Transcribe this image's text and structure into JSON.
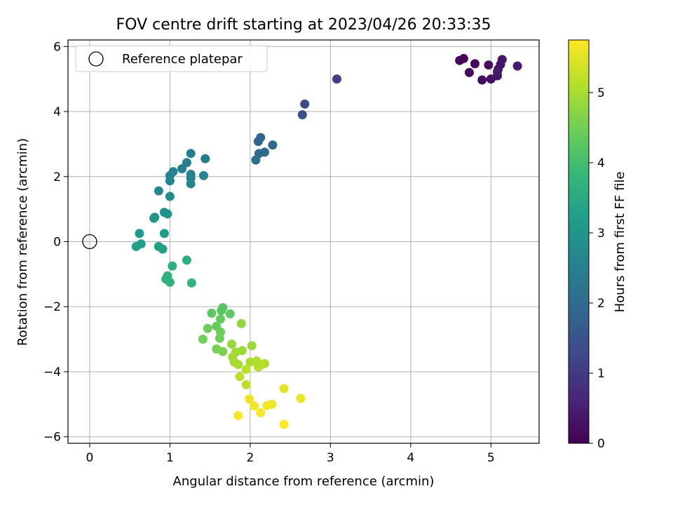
{
  "chart_data": {
    "type": "scatter",
    "title": "FOV centre drift starting at 2023/04/26 20:33:35",
    "xlabel": "Angular distance from reference (arcmin)",
    "ylabel": "Rotation from reference (arcmin)",
    "xlim": [
      -0.27,
      5.6
    ],
    "ylim": [
      -6.2,
      6.2
    ],
    "xticks": [
      "0",
      "1",
      "2",
      "3",
      "4",
      "5"
    ],
    "yticks": [
      "−6",
      "−4",
      "−2",
      "0",
      "2",
      "4",
      "6"
    ],
    "grid": true,
    "legend": {
      "position": "top-left",
      "label": "Reference platepar"
    },
    "reference_point": {
      "x": 0,
      "y": 0
    },
    "colorbar": {
      "label": "Hours from first FF file",
      "range": [
        0,
        5.75
      ],
      "ticks": [
        "0",
        "1",
        "2",
        "3",
        "4",
        "5"
      ],
      "colormap": "viridis",
      "colors": [
        "#440154",
        "#482878",
        "#3e4989",
        "#31688e",
        "#26828e",
        "#1f9e89",
        "#35b779",
        "#6ece58",
        "#b5de2b",
        "#fde725"
      ]
    },
    "series": [
      {
        "points": [
          {
            "x": 4.61,
            "y": 5.57,
            "h": 0.05
          },
          {
            "x": 4.66,
            "y": 5.63,
            "h": 0.08
          },
          {
            "x": 4.8,
            "y": 5.47,
            "h": 0.12
          },
          {
            "x": 4.73,
            "y": 5.2,
            "h": 0.15
          },
          {
            "x": 4.89,
            "y": 4.97,
            "h": 0.18
          },
          {
            "x": 4.97,
            "y": 5.43,
            "h": 0.22
          },
          {
            "x": 5.0,
            "y": 5.0,
            "h": 0.25
          },
          {
            "x": 5.08,
            "y": 5.1,
            "h": 0.28
          },
          {
            "x": 5.09,
            "y": 5.3,
            "h": 0.3
          },
          {
            "x": 5.12,
            "y": 5.45,
            "h": 0.33
          },
          {
            "x": 5.14,
            "y": 5.6,
            "h": 0.36
          },
          {
            "x": 5.33,
            "y": 5.4,
            "h": 0.4
          },
          {
            "x": 5.08,
            "y": 5.22,
            "h": 0.42
          },
          {
            "x": 3.08,
            "y": 5.0,
            "h": 1.1
          },
          {
            "x": 2.68,
            "y": 4.23,
            "h": 1.3
          },
          {
            "x": 2.65,
            "y": 3.9,
            "h": 1.4
          },
          {
            "x": 2.13,
            "y": 3.2,
            "h": 1.8
          },
          {
            "x": 2.1,
            "y": 3.08,
            "h": 1.85
          },
          {
            "x": 2.28,
            "y": 2.97,
            "h": 1.9
          },
          {
            "x": 2.18,
            "y": 2.75,
            "h": 1.95
          },
          {
            "x": 2.11,
            "y": 2.71,
            "h": 2.0
          },
          {
            "x": 2.07,
            "y": 2.51,
            "h": 2.05
          },
          {
            "x": 1.44,
            "y": 2.55,
            "h": 2.4
          },
          {
            "x": 1.26,
            "y": 2.71,
            "h": 2.42
          },
          {
            "x": 1.21,
            "y": 2.43,
            "h": 2.45
          },
          {
            "x": 1.15,
            "y": 2.24,
            "h": 2.48
          },
          {
            "x": 1.04,
            "y": 2.15,
            "h": 2.5
          },
          {
            "x": 1.26,
            "y": 2.07,
            "h": 2.52
          },
          {
            "x": 1.0,
            "y": 2.03,
            "h": 2.55
          },
          {
            "x": 1.26,
            "y": 1.95,
            "h": 2.57
          },
          {
            "x": 1.42,
            "y": 2.03,
            "h": 2.6
          },
          {
            "x": 1.0,
            "y": 1.87,
            "h": 2.62
          },
          {
            "x": 1.26,
            "y": 1.78,
            "h": 2.65
          },
          {
            "x": 0.86,
            "y": 1.56,
            "h": 2.7
          },
          {
            "x": 1.0,
            "y": 1.39,
            "h": 2.75
          },
          {
            "x": 0.93,
            "y": 0.9,
            "h": 2.9
          },
          {
            "x": 0.97,
            "y": 0.85,
            "h": 2.95
          },
          {
            "x": 0.81,
            "y": 0.75,
            "h": 3.0
          },
          {
            "x": 0.8,
            "y": 0.72,
            "h": 3.02
          },
          {
            "x": 0.62,
            "y": 0.25,
            "h": 3.1
          },
          {
            "x": 0.93,
            "y": 0.25,
            "h": 3.12
          },
          {
            "x": 0.64,
            "y": -0.07,
            "h": 3.2
          },
          {
            "x": 0.58,
            "y": -0.15,
            "h": 3.22
          },
          {
            "x": 0.86,
            "y": -0.15,
            "h": 3.25
          },
          {
            "x": 0.91,
            "y": -0.23,
            "h": 3.28
          },
          {
            "x": 1.21,
            "y": -0.57,
            "h": 3.6
          },
          {
            "x": 1.03,
            "y": -0.75,
            "h": 3.62
          },
          {
            "x": 0.97,
            "y": -1.05,
            "h": 3.65
          },
          {
            "x": 0.95,
            "y": -1.15,
            "h": 3.68
          },
          {
            "x": 1.0,
            "y": -1.25,
            "h": 3.7
          },
          {
            "x": 1.27,
            "y": -1.27,
            "h": 3.72
          },
          {
            "x": 1.66,
            "y": -2.03,
            "h": 4.2
          },
          {
            "x": 1.64,
            "y": -2.12,
            "h": 4.25
          },
          {
            "x": 1.52,
            "y": -2.2,
            "h": 4.28
          },
          {
            "x": 1.75,
            "y": -2.22,
            "h": 4.3
          },
          {
            "x": 1.63,
            "y": -2.38,
            "h": 4.35
          },
          {
            "x": 1.58,
            "y": -2.6,
            "h": 4.4
          },
          {
            "x": 1.47,
            "y": -2.67,
            "h": 4.42
          },
          {
            "x": 1.63,
            "y": -2.78,
            "h": 4.45
          },
          {
            "x": 1.62,
            "y": -2.97,
            "h": 4.48
          },
          {
            "x": 1.41,
            "y": -3.0,
            "h": 4.5
          },
          {
            "x": 1.58,
            "y": -3.3,
            "h": 4.55
          },
          {
            "x": 1.66,
            "y": -3.38,
            "h": 4.58
          },
          {
            "x": 1.89,
            "y": -2.52,
            "h": 4.8
          },
          {
            "x": 1.77,
            "y": -3.15,
            "h": 4.85
          },
          {
            "x": 2.02,
            "y": -3.2,
            "h": 4.88
          },
          {
            "x": 1.9,
            "y": -3.35,
            "h": 4.9
          },
          {
            "x": 1.82,
            "y": -3.4,
            "h": 4.92
          },
          {
            "x": 1.78,
            "y": -3.55,
            "h": 4.95
          },
          {
            "x": 1.8,
            "y": -3.7,
            "h": 4.97
          },
          {
            "x": 1.85,
            "y": -3.78,
            "h": 5.0
          },
          {
            "x": 2.0,
            "y": -3.7,
            "h": 5.02
          },
          {
            "x": 2.08,
            "y": -3.67,
            "h": 5.05
          },
          {
            "x": 2.1,
            "y": -3.85,
            "h": 5.07
          },
          {
            "x": 2.18,
            "y": -3.75,
            "h": 5.1
          },
          {
            "x": 2.13,
            "y": -3.8,
            "h": 5.12
          },
          {
            "x": 1.95,
            "y": -3.93,
            "h": 5.15
          },
          {
            "x": 1.87,
            "y": -4.15,
            "h": 5.18
          },
          {
            "x": 1.95,
            "y": -4.4,
            "h": 5.2
          },
          {
            "x": 2.42,
            "y": -4.52,
            "h": 5.55
          },
          {
            "x": 2.63,
            "y": -4.82,
            "h": 5.58
          },
          {
            "x": 1.99,
            "y": -4.84,
            "h": 5.6
          },
          {
            "x": 2.27,
            "y": -5.0,
            "h": 5.62
          },
          {
            "x": 2.21,
            "y": -5.04,
            "h": 5.64
          },
          {
            "x": 2.05,
            "y": -5.05,
            "h": 5.66
          },
          {
            "x": 2.13,
            "y": -5.26,
            "h": 5.68
          },
          {
            "x": 1.85,
            "y": -5.35,
            "h": 5.7
          },
          {
            "x": 2.42,
            "y": -5.62,
            "h": 5.74
          }
        ]
      }
    ]
  }
}
